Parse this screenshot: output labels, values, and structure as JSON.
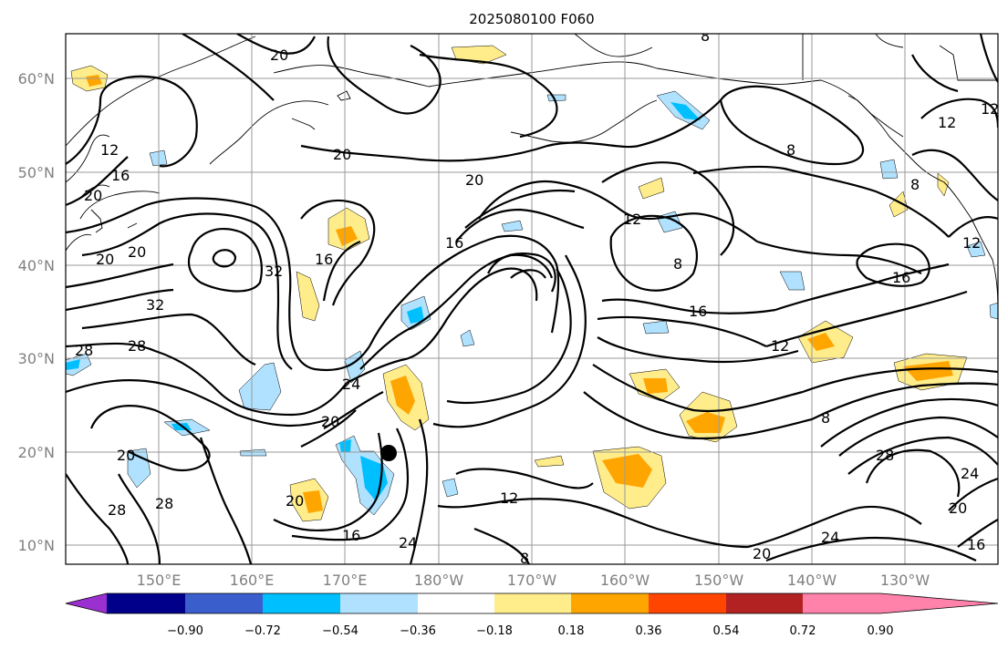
{
  "title": "2025080100 F060",
  "lon_labels": [
    "150°E",
    "160°E",
    "170°E",
    "180°W",
    "170°W",
    "160°W",
    "150°W",
    "140°W",
    "130°W"
  ],
  "lat_labels": [
    "60°N",
    "50°N",
    "40°N",
    "30°N",
    "20°N",
    "10°N"
  ],
  "colorbar": {
    "ticks": [
      "−0.90",
      "−0.72",
      "−0.54",
      "−0.36",
      "−0.18",
      "0.18",
      "0.36",
      "0.54",
      "0.72",
      "0.90"
    ],
    "colors": [
      "#9b30d0",
      "#00008b",
      "#3a5fcd",
      "#00bfff",
      "#b0e2ff",
      "#ffffff",
      "#ffec8b",
      "#ffa500",
      "#ff4500",
      "#b22222",
      "#ff82ab"
    ]
  },
  "contour_labels": [
    "20",
    "20",
    "20",
    "20",
    "12",
    "16",
    "20",
    "20",
    "16",
    "32",
    "32",
    "28",
    "28",
    "24",
    "20",
    "20",
    "20",
    "28",
    "28",
    "16",
    "24",
    "12",
    "16",
    "12",
    "8",
    "16",
    "12",
    "8",
    "28",
    "24",
    "20",
    "16",
    "24",
    "20",
    "8",
    "8",
    "12",
    "16",
    "12",
    "12",
    "8",
    "8"
  ],
  "map": {
    "projection": "PlateCarree",
    "extent_lon": [
      "141°E",
      "119°W"
    ],
    "extent_lat": [
      "8°N",
      "65°N"
    ],
    "center_marker": "black-dot"
  }
}
